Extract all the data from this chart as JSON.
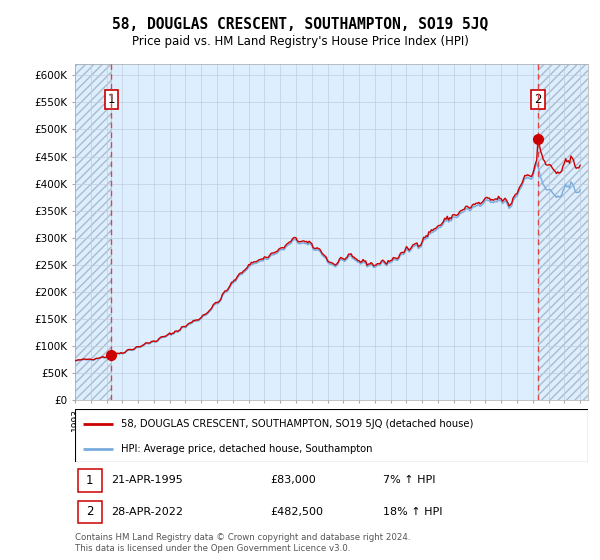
{
  "title": "58, DOUGLAS CRESCENT, SOUTHAMPTON, SO19 5JQ",
  "subtitle": "Price paid vs. HM Land Registry's House Price Index (HPI)",
  "ylim": [
    0,
    620000
  ],
  "xlim_start": 1993.0,
  "xlim_end": 2025.5,
  "sale1_x": 1995.31,
  "sale1_y": 83000,
  "sale2_x": 2022.33,
  "sale2_y": 482500,
  "legend_line1": "58, DOUGLAS CRESCENT, SOUTHAMPTON, SO19 5JQ (detached house)",
  "legend_line2": "HPI: Average price, detached house, Southampton",
  "footer": "Contains HM Land Registry data © Crown copyright and database right 2024.\nThis data is licensed under the Open Government Licence v3.0.",
  "line_color_red": "#cc0000",
  "line_color_blue": "#7aaddd",
  "bg_color": "#ddeeff",
  "hatch_color": "#aabbcc",
  "grid_color": "#c0cfe0"
}
